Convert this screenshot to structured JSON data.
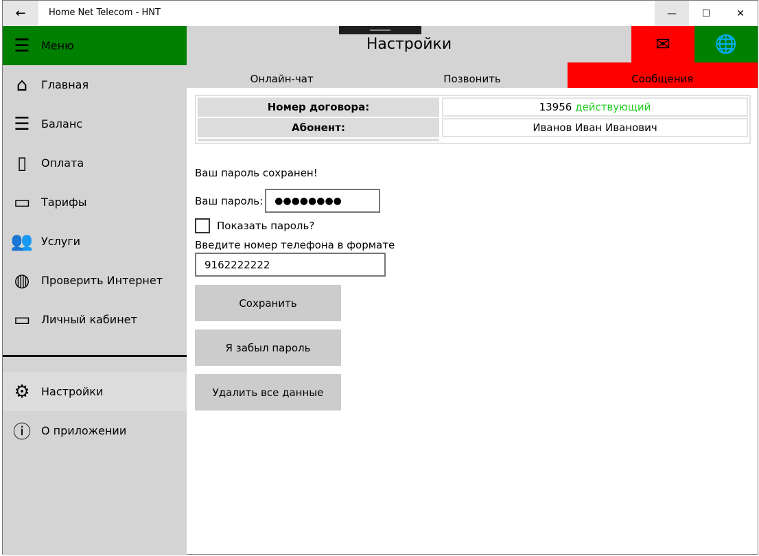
{
  "window": {
    "title": "Home Net Telecom - HNT",
    "back": "←",
    "minimize": "—",
    "maximize": "☐",
    "close": "✕"
  },
  "sidebar": {
    "menu_label": "Меню",
    "items": [
      {
        "label": "Главная",
        "icon": "home-icon",
        "glyph": "⌂"
      },
      {
        "label": "Баланс",
        "icon": "list-icon",
        "glyph": "☰"
      },
      {
        "label": "Оплата",
        "icon": "bag-icon",
        "glyph": "▯"
      },
      {
        "label": "Тарифы",
        "icon": "clipboard-icon",
        "glyph": "▭"
      },
      {
        "label": "Услуги",
        "icon": "people-icon",
        "glyph": "👥"
      },
      {
        "label": "Проверить Интернет",
        "icon": "globe-icon",
        "glyph": "◍"
      },
      {
        "label": "Личный кабинет",
        "icon": "laptop-icon",
        "glyph": "▭"
      }
    ],
    "bottom_items": [
      {
        "label": "Настройки",
        "icon": "gear-icon",
        "glyph": "⚙"
      },
      {
        "label": "О приложении",
        "icon": "info-icon",
        "glyph": "ⓘ"
      }
    ]
  },
  "header": {
    "title": "Настройки",
    "mail_glyph": "✉",
    "globe_glyph": "🌐"
  },
  "tabs": [
    "Онлайн-чат",
    "Позвонить",
    "Сообщения"
  ],
  "info": {
    "contract_label": "Номер договора:",
    "contract_number": "13956",
    "contract_status": "действующий",
    "subscriber_label": "Абонент:",
    "subscriber": "Иванов Иван Иванович"
  },
  "colors": {
    "green": "#008000",
    "red": "#ff0000",
    "status_green": "#22cc22"
  },
  "form": {
    "saved_msg": "Ваш пароль сохранен!",
    "password_label": "Ваш пароль:",
    "password_value": "●●●●●●●●",
    "show_password": "Показать пароль?",
    "phone_label": "Введите номер телефона в формате",
    "phone_value": "9162222222"
  },
  "buttons": {
    "save": "Сохранить",
    "forgot": "Я забыл пароль",
    "delete": "Удалить все данные"
  }
}
